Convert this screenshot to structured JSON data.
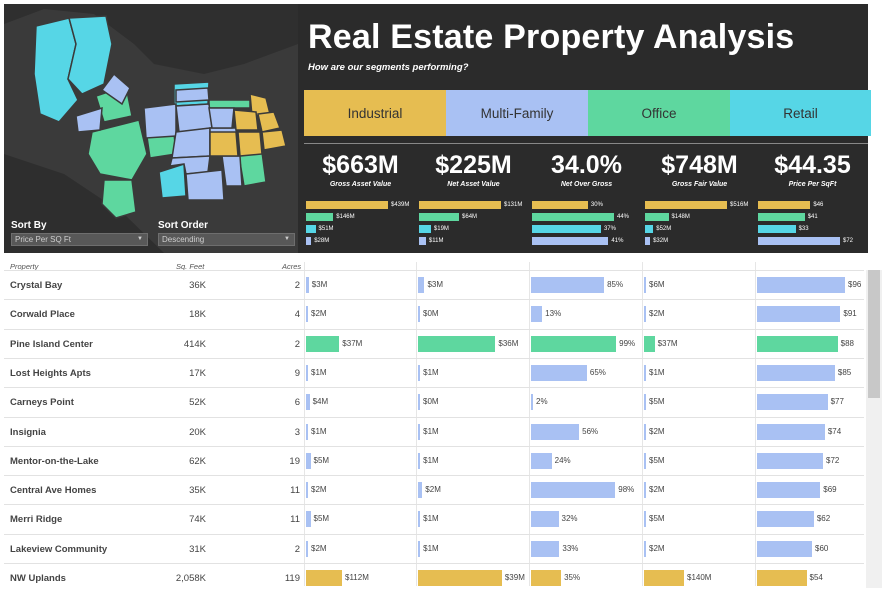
{
  "header": {
    "title": "Real Estate Property Analysis",
    "subtitle": "How are our segments performing?"
  },
  "sort": {
    "by_label": "Sort By",
    "by_value": "Price Per SQ Ft",
    "order_label": "Sort Order",
    "order_value": "Descending"
  },
  "colors": {
    "industrial": "#e6bd51",
    "multifamily": "#a9c1f3",
    "office": "#5ed79f",
    "retail": "#56d6e6"
  },
  "segments": [
    {
      "label": "Industrial",
      "color": "#e6bd51"
    },
    {
      "label": "Multi-Family",
      "color": "#a9c1f3"
    },
    {
      "label": "Office",
      "color": "#5ed79f"
    },
    {
      "label": "Retail",
      "color": "#56d6e6"
    }
  ],
  "kpis": [
    {
      "value": "$663M",
      "label": "Gross Asset Value",
      "bars": [
        {
          "label": "$439M",
          "v": 439
        },
        {
          "label": "$146M",
          "v": 146
        },
        {
          "label": "$51M",
          "v": 51
        },
        {
          "label": "$28M",
          "v": 28
        }
      ]
    },
    {
      "value": "$225M",
      "label": "Net Asset Value",
      "bars": [
        {
          "label": "$131M",
          "v": 131
        },
        {
          "label": "$64M",
          "v": 64
        },
        {
          "label": "$19M",
          "v": 19
        },
        {
          "label": "$11M",
          "v": 11
        }
      ]
    },
    {
      "value": "34.0%",
      "label": "Net Over Gross",
      "bars": [
        {
          "label": "30%",
          "v": 30
        },
        {
          "label": "44%",
          "v": 44
        },
        {
          "label": "37%",
          "v": 37
        },
        {
          "label": "41%",
          "v": 41
        }
      ]
    },
    {
      "value": "$748M",
      "label": "Gross Fair Value",
      "bars": [
        {
          "label": "$516M",
          "v": 516
        },
        {
          "label": "$148M",
          "v": 148
        },
        {
          "label": "$52M",
          "v": 52
        },
        {
          "label": "$32M",
          "v": 32
        }
      ]
    },
    {
      "value": "$44.35",
      "label": "Price Per SqFt",
      "bars": [
        {
          "label": "$46",
          "v": 46
        },
        {
          "label": "$41",
          "v": 41
        },
        {
          "label": "$33",
          "v": 33
        },
        {
          "label": "$72",
          "v": 72
        }
      ]
    }
  ],
  "table": {
    "columns": {
      "property": "Property",
      "sqft": "Sq. Feet",
      "acres": "Acres"
    },
    "rows": [
      {
        "name": "Crystal Bay",
        "sqft": "36K",
        "acres": "2",
        "segment": "multifamily",
        "gav": {
          "label": "$3M",
          "v": 3
        },
        "nav": {
          "label": "$3M",
          "v": 3
        },
        "nog": {
          "label": "85%",
          "v": 85
        },
        "gfv": {
          "label": "$6M",
          "v": 6
        },
        "ppsf": {
          "label": "$96",
          "v": 96
        }
      },
      {
        "name": "Corwald Place",
        "sqft": "18K",
        "acres": "4",
        "segment": "multifamily",
        "gav": {
          "label": "$2M",
          "v": 2
        },
        "nav": {
          "label": "$0M",
          "v": 0
        },
        "nog": {
          "label": "13%",
          "v": 13
        },
        "gfv": {
          "label": "$2M",
          "v": 2
        },
        "ppsf": {
          "label": "$91",
          "v": 91
        }
      },
      {
        "name": "Pine Island Center",
        "sqft": "414K",
        "acres": "2",
        "segment": "office",
        "gav": {
          "label": "$37M",
          "v": 37
        },
        "nav": {
          "label": "$36M",
          "v": 36
        },
        "nog": {
          "label": "99%",
          "v": 99
        },
        "gfv": {
          "label": "$37M",
          "v": 37
        },
        "ppsf": {
          "label": "$88",
          "v": 88
        }
      },
      {
        "name": "Lost Heights Apts",
        "sqft": "17K",
        "acres": "9",
        "segment": "multifamily",
        "gav": {
          "label": "$1M",
          "v": 1
        },
        "nav": {
          "label": "$1M",
          "v": 1
        },
        "nog": {
          "label": "65%",
          "v": 65
        },
        "gfv": {
          "label": "$1M",
          "v": 1
        },
        "ppsf": {
          "label": "$85",
          "v": 85
        }
      },
      {
        "name": "Carneys Point",
        "sqft": "52K",
        "acres": "6",
        "segment": "multifamily",
        "gav": {
          "label": "$4M",
          "v": 4
        },
        "nav": {
          "label": "$0M",
          "v": 0
        },
        "nog": {
          "label": "2%",
          "v": 2
        },
        "gfv": {
          "label": "$5M",
          "v": 5
        },
        "ppsf": {
          "label": "$77",
          "v": 77
        }
      },
      {
        "name": "Insignia",
        "sqft": "20K",
        "acres": "3",
        "segment": "multifamily",
        "gav": {
          "label": "$1M",
          "v": 1
        },
        "nav": {
          "label": "$1M",
          "v": 1
        },
        "nog": {
          "label": "56%",
          "v": 56
        },
        "gfv": {
          "label": "$2M",
          "v": 2
        },
        "ppsf": {
          "label": "$74",
          "v": 74
        }
      },
      {
        "name": "Mentor-on-the-Lake",
        "sqft": "62K",
        "acres": "19",
        "segment": "multifamily",
        "gav": {
          "label": "$5M",
          "v": 5
        },
        "nav": {
          "label": "$1M",
          "v": 1
        },
        "nog": {
          "label": "24%",
          "v": 24
        },
        "gfv": {
          "label": "$5M",
          "v": 5
        },
        "ppsf": {
          "label": "$72",
          "v": 72
        }
      },
      {
        "name": "Central Ave Homes",
        "sqft": "35K",
        "acres": "11",
        "segment": "multifamily",
        "gav": {
          "label": "$2M",
          "v": 2
        },
        "nav": {
          "label": "$2M",
          "v": 2
        },
        "nog": {
          "label": "98%",
          "v": 98
        },
        "gfv": {
          "label": "$2M",
          "v": 2
        },
        "ppsf": {
          "label": "$69",
          "v": 69
        }
      },
      {
        "name": "Merri Ridge",
        "sqft": "74K",
        "acres": "11",
        "segment": "multifamily",
        "gav": {
          "label": "$5M",
          "v": 5
        },
        "nav": {
          "label": "$1M",
          "v": 1
        },
        "nog": {
          "label": "32%",
          "v": 32
        },
        "gfv": {
          "label": "$5M",
          "v": 5
        },
        "ppsf": {
          "label": "$62",
          "v": 62
        }
      },
      {
        "name": "Lakeview Community",
        "sqft": "31K",
        "acres": "2",
        "segment": "multifamily",
        "gav": {
          "label": "$2M",
          "v": 2
        },
        "nav": {
          "label": "$1M",
          "v": 1
        },
        "nog": {
          "label": "33%",
          "v": 33
        },
        "gfv": {
          "label": "$2M",
          "v": 2
        },
        "ppsf": {
          "label": "$60",
          "v": 60
        }
      },
      {
        "name": "NW Uplands",
        "sqft": "2,058K",
        "acres": "119",
        "segment": "industrial",
        "gav": {
          "label": "$112M",
          "v": 112
        },
        "nav": {
          "label": "$39M",
          "v": 39
        },
        "nog": {
          "label": "35%",
          "v": 35
        },
        "gfv": {
          "label": "$140M",
          "v": 140
        },
        "ppsf": {
          "label": "$54",
          "v": 54
        }
      }
    ]
  }
}
